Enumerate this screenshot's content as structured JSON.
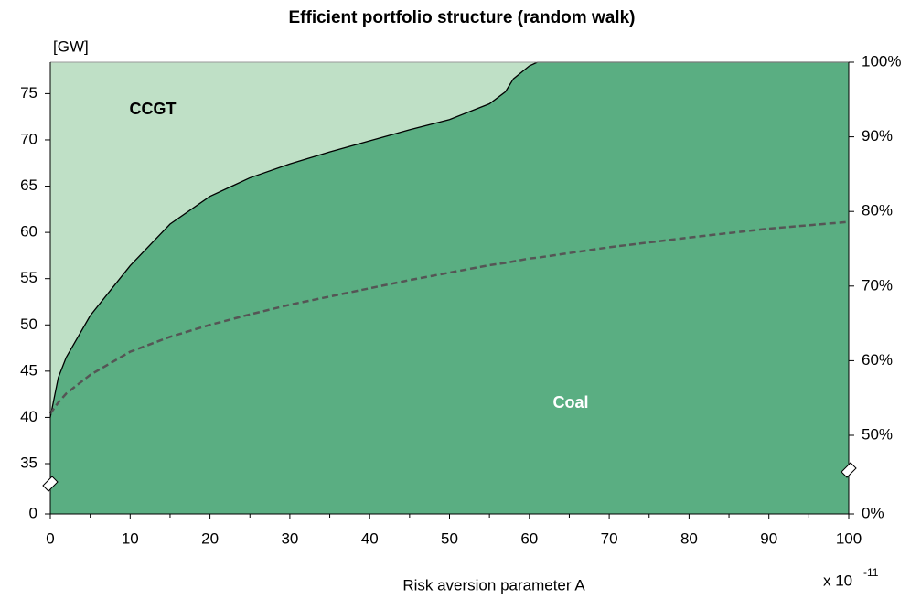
{
  "chart_data": {
    "type": "area",
    "title": "Efficient portfolio structure (random walk)",
    "xlabel": "Risk aversion parameter A",
    "x_scale_label": {
      "base": "x 10",
      "exponent": "-11"
    },
    "ylabel": "[GW]",
    "x": [
      0,
      1,
      2,
      5,
      10,
      15,
      20,
      25,
      30,
      35,
      40,
      45,
      50,
      55,
      57,
      58,
      60,
      61,
      70,
      80,
      90,
      100
    ],
    "series": [
      {
        "name": "Coal",
        "color": "#5aae82",
        "values": [
          40,
          44.3,
          46.5,
          51,
          56.4,
          60.9,
          63.9,
          65.9,
          67.4,
          68.7,
          69.9,
          71.1,
          72.2,
          73.9,
          75.2,
          76.6,
          78,
          78.4,
          78.4,
          78.4,
          78.4,
          78.4
        ]
      },
      {
        "name": "CCGT",
        "color": "#bfe0c6",
        "values": [
          38.4,
          34.1,
          31.9,
          27.4,
          22,
          17.5,
          14.5,
          12.5,
          11,
          9.7,
          8.5,
          7.3,
          6.2,
          4.5,
          3.2,
          1.8,
          0.4,
          0,
          0,
          0,
          0,
          0
        ]
      },
      {
        "color": "#555555",
        "axis": "y2",
        "dashed": true,
        "values": [
          52.9,
          54.4,
          55.6,
          58.1,
          61.2,
          63.2,
          64.8,
          66.2,
          67.5,
          68.6,
          69.7,
          70.8,
          71.8,
          72.8,
          73.1,
          73.3,
          73.7,
          73.8,
          75.2,
          76.5,
          77.7,
          78.6
        ]
      }
    ],
    "xlim": [
      0,
      100
    ],
    "xticks": [
      0,
      10,
      20,
      30,
      40,
      50,
      60,
      70,
      80,
      90,
      100
    ],
    "ylim": [
      0,
      78.4
    ],
    "y_break": [
      0,
      35
    ],
    "yticks": [
      0,
      35,
      40,
      45,
      50,
      55,
      60,
      65,
      70,
      75
    ],
    "y2lim": [
      0,
      100
    ],
    "y2_break": [
      0,
      50
    ],
    "y2ticks": [
      {
        "value": 0,
        "label": "0%"
      },
      {
        "value": 50,
        "label": "50%"
      },
      {
        "value": 60,
        "label": "60%"
      },
      {
        "value": 70,
        "label": "70%"
      },
      {
        "value": 80,
        "label": "80%"
      },
      {
        "value": 90,
        "label": "90%"
      },
      {
        "value": 100,
        "label": "100%"
      }
    ]
  }
}
